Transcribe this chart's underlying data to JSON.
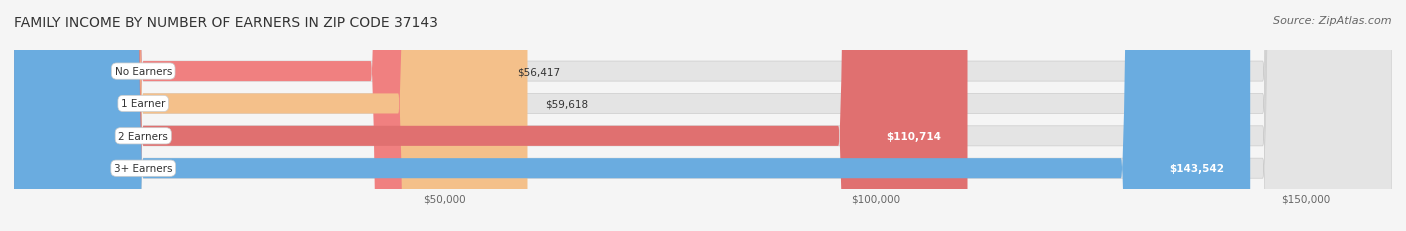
{
  "title": "FAMILY INCOME BY NUMBER OF EARNERS IN ZIP CODE 37143",
  "source": "Source: ZipAtlas.com",
  "categories": [
    "No Earners",
    "1 Earner",
    "2 Earners",
    "3+ Earners"
  ],
  "values": [
    56417,
    59618,
    110714,
    143542
  ],
  "labels": [
    "$56,417",
    "$59,618",
    "$110,714",
    "$143,542"
  ],
  "bar_colors": [
    "#f08080",
    "#f4c08a",
    "#e07070",
    "#6aace0"
  ],
  "bar_bg_colors": [
    "#f0f0f0",
    "#f0f0f0",
    "#f0f0f0",
    "#f0f0f0"
  ],
  "label_colors": [
    "#333333",
    "#333333",
    "#ffffff",
    "#ffffff"
  ],
  "xmin": 0,
  "xmax": 160000,
  "xticks": [
    50000,
    100000,
    150000
  ],
  "xticklabels": [
    "$50,000",
    "$100,000",
    "$150,000"
  ],
  "bg_color": "#f5f5f5",
  "bar_bg_color": "#e8e8e8",
  "title_fontsize": 10,
  "source_fontsize": 8
}
